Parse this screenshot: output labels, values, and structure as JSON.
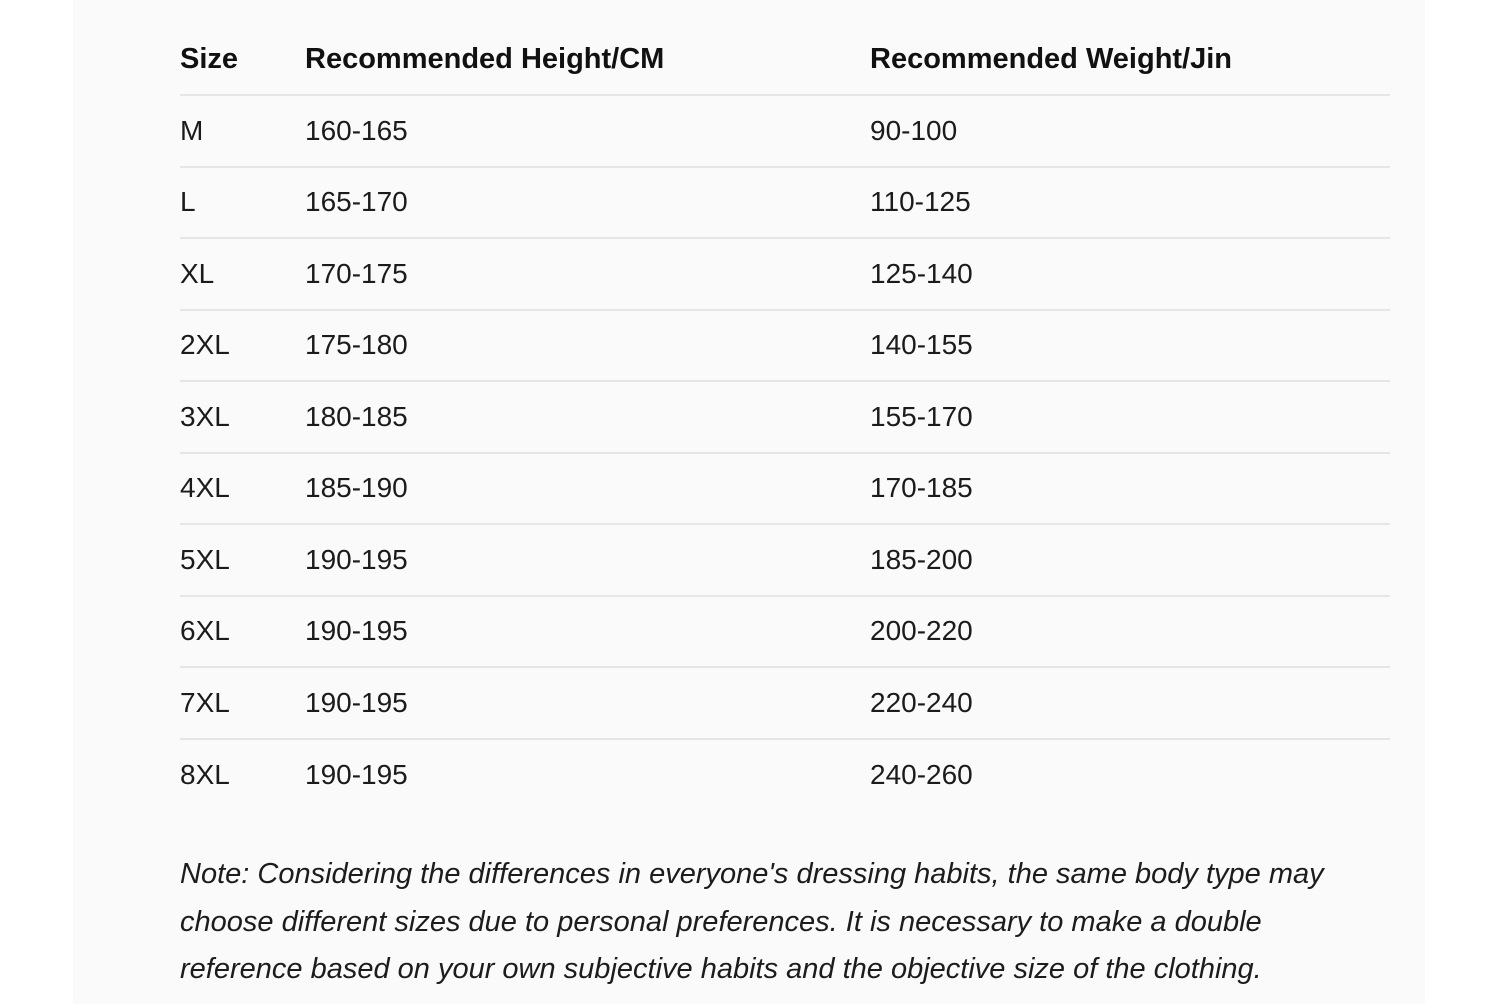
{
  "table": {
    "columns": {
      "size": "Size",
      "height": "Recommended Height/CM",
      "weight": "Recommended Weight/Jin"
    },
    "rows": [
      {
        "size": "M",
        "height": "160-165",
        "weight": "90-100"
      },
      {
        "size": "L",
        "height": "165-170",
        "weight": "110-125"
      },
      {
        "size": "XL",
        "height": "170-175",
        "weight": "125-140"
      },
      {
        "size": "2XL",
        "height": "175-180",
        "weight": "140-155"
      },
      {
        "size": "3XL",
        "height": "180-185",
        "weight": "155-170"
      },
      {
        "size": "4XL",
        "height": "185-190",
        "weight": "170-185"
      },
      {
        "size": "5XL",
        "height": "190-195",
        "weight": "185-200"
      },
      {
        "size": "6XL",
        "height": "190-195",
        "weight": "200-220"
      },
      {
        "size": "7XL",
        "height": "190-195",
        "weight": "220-240"
      },
      {
        "size": "8XL",
        "height": "190-195",
        "weight": "240-260"
      }
    ]
  },
  "note": {
    "lines": [
      "Note: Considering the differences in everyone's dressing habits, the same body type may",
      "choose different sizes due to personal preferences. It is necessary to make a double",
      "reference based on your own subjective habits and the objective size of the clothing."
    ]
  },
  "colors": {
    "panel_background": "#fafafa",
    "divider": "#e6e6e6",
    "text": "#1b1b1b"
  }
}
